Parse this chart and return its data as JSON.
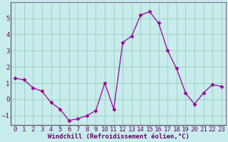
{
  "x": [
    0,
    1,
    2,
    3,
    4,
    5,
    6,
    7,
    8,
    9,
    10,
    11,
    12,
    13,
    14,
    15,
    16,
    17,
    18,
    19,
    20,
    21,
    22,
    23
  ],
  "y": [
    1.3,
    1.2,
    0.7,
    0.5,
    -0.2,
    -0.6,
    -1.3,
    -1.2,
    -1.0,
    -0.7,
    1.0,
    -0.6,
    3.5,
    3.9,
    5.2,
    5.4,
    4.7,
    3.0,
    1.9,
    0.4,
    -0.3,
    0.4,
    0.9,
    0.8
  ],
  "line_color": "#990099",
  "marker": "D",
  "marker_size": 2.5,
  "xlabel": "Windchill (Refroidissement éolien,°C)",
  "xlim": [
    -0.5,
    23.5
  ],
  "ylim": [
    -1.6,
    6.0
  ],
  "yticks": [
    -1,
    0,
    1,
    2,
    3,
    4,
    5
  ],
  "xticks": [
    0,
    1,
    2,
    3,
    4,
    5,
    6,
    7,
    8,
    9,
    10,
    11,
    12,
    13,
    14,
    15,
    16,
    17,
    18,
    19,
    20,
    21,
    22,
    23
  ],
  "bg_color": "#c8ecec",
  "grid_color": "#99ccbb",
  "font_color": "#660066",
  "spine_color": "#886688",
  "font_size": 6.5
}
